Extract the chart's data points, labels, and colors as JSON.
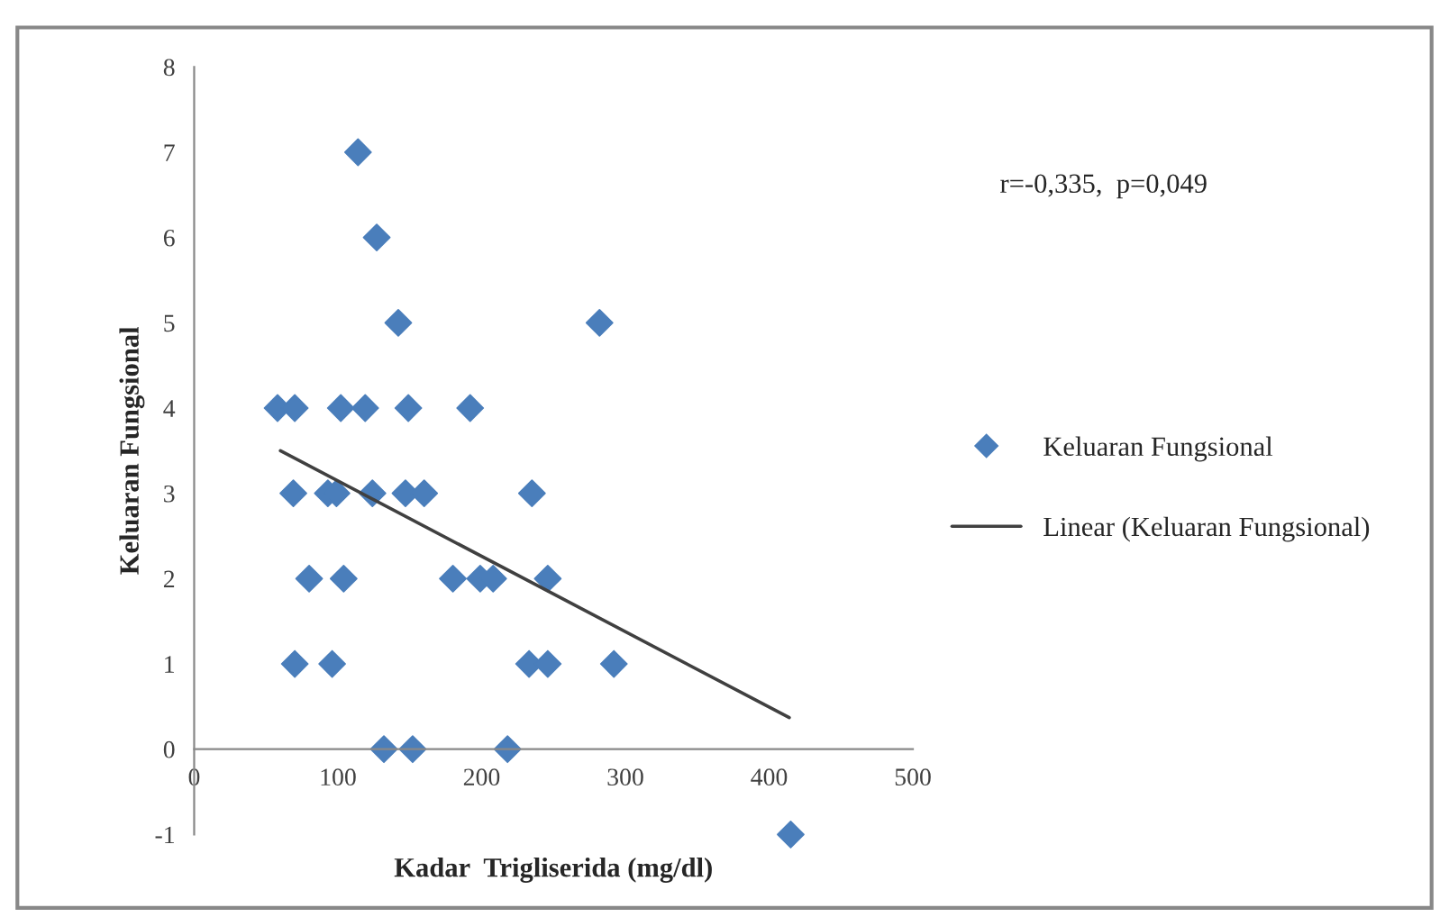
{
  "chart_data": {
    "type": "scatter",
    "xlabel": "Kadar  Trigliserida (mg/dl)",
    "ylabel": "Keluaran Fungsional",
    "annotations": [
      "r=-0,335,  p=0,049"
    ],
    "series": [
      {
        "name": "Keluaran Fungsional",
        "color": "#4a7ebb",
        "marker": "diamond",
        "x": [
          114,
          127,
          142,
          282,
          58,
          70,
          102,
          119,
          149,
          192,
          69,
          93,
          99,
          124,
          147,
          160,
          235,
          80,
          104,
          180,
          199,
          208,
          246,
          70,
          96,
          233,
          246,
          292,
          132,
          152,
          218,
          415
        ],
        "values": [
          7,
          6,
          5,
          5,
          4,
          4,
          4,
          4,
          4,
          4,
          3,
          3,
          3,
          3,
          3,
          3,
          3,
          2,
          2,
          2,
          2,
          2,
          2,
          1,
          1,
          1,
          1,
          1,
          0,
          0,
          0,
          -1
        ]
      },
      {
        "name": "Linear (Keluaran Fungsional)",
        "type": "line",
        "color": "#404040",
        "marker": "none",
        "line_style": "solid",
        "x": [
          60,
          414
        ],
        "values": [
          3.5,
          0.37
        ]
      }
    ],
    "xlim": [
      0,
      500
    ],
    "xticks": [
      0,
      100,
      200,
      300,
      400,
      500
    ],
    "ylim": [
      -1,
      8
    ],
    "yticks": [
      -1,
      0,
      1,
      2,
      3,
      4,
      5,
      6,
      7,
      8
    ],
    "grid": false,
    "legend": "right"
  }
}
